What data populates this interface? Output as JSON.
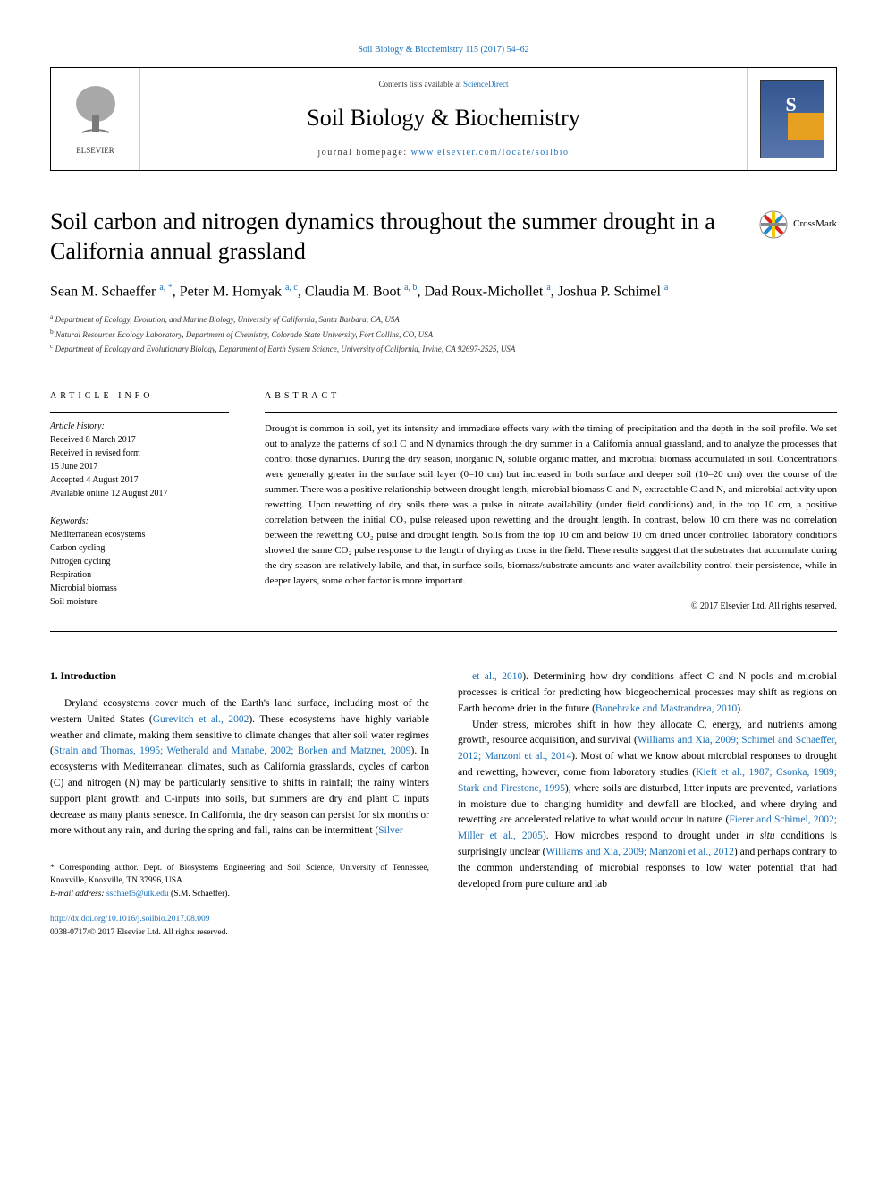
{
  "header": {
    "citation": "Soil Biology & Biochemistry 115 (2017) 54–62",
    "contents_prefix": "Contents lists available at ",
    "contents_link": "ScienceDirect",
    "journal_name": "Soil Biology & Biochemistry",
    "homepage_prefix": "journal homepage: ",
    "homepage_url": "www.elsevier.com/locate/soilbio",
    "publisher": "ELSEVIER"
  },
  "crossmark": {
    "label": "CrossMark"
  },
  "article": {
    "title": "Soil carbon and nitrogen dynamics throughout the summer drought in a California annual grassland",
    "authors_html": "Sean M. Schaeffer <sup>a, *</sup>, Peter M. Homyak <sup>a, c</sup>, Claudia M. Boot <sup>a, b</sup>, Dad Roux-Michollet <sup>a</sup>, Joshua P. Schimel <sup>a</sup>",
    "affiliations": [
      "a Department of Ecology, Evolution, and Marine Biology, University of California, Santa Barbara, CA, USA",
      "b Natural Resources Ecology Laboratory, Department of Chemistry, Colorado State University, Fort Collins, CO, USA",
      "c Department of Ecology and Evolutionary Biology, Department of Earth System Science, University of California, Irvine, CA 92697-2525, USA"
    ]
  },
  "meta": {
    "info_heading": "ARTICLE INFO",
    "history_title": "Article history:",
    "history": [
      "Received 8 March 2017",
      "Received in revised form",
      "15 June 2017",
      "Accepted 4 August 2017",
      "Available online 12 August 2017"
    ],
    "keywords_title": "Keywords:",
    "keywords": [
      "Mediterranean ecosystems",
      "Carbon cycling",
      "Nitrogen cycling",
      "Respiration",
      "Microbial biomass",
      "Soil moisture"
    ]
  },
  "abstract": {
    "heading": "ABSTRACT",
    "text": "Drought is common in soil, yet its intensity and immediate effects vary with the timing of precipitation and the depth in the soil profile. We set out to analyze the patterns of soil C and N dynamics through the dry summer in a California annual grassland, and to analyze the processes that control those dynamics. During the dry season, inorganic N, soluble organic matter, and microbial biomass accumulated in soil. Concentrations were generally greater in the surface soil layer (0–10 cm) but increased in both surface and deeper soil (10–20 cm) over the course of the summer. There was a positive relationship between drought length, microbial biomass C and N, extractable C and N, and microbial activity upon rewetting. Upon rewetting of dry soils there was a pulse in nitrate availability (under field conditions) and, in the top 10 cm, a positive correlation between the initial CO₂ pulse released upon rewetting and the drought length. In contrast, below 10 cm there was no correlation between the rewetting CO₂ pulse and drought length. Soils from the top 10 cm and below 10 cm dried under controlled laboratory conditions showed the same CO₂ pulse response to the length of drying as those in the field. These results suggest that the substrates that accumulate during the dry season are relatively labile, and that, in surface soils, biomass/substrate amounts and water availability control their persistence, while in deeper layers, some other factor is more important.",
    "copyright": "© 2017 Elsevier Ltd. All rights reserved."
  },
  "body": {
    "section_heading": "1. Introduction",
    "col1_para1_pre": "Dryland ecosystems cover much of the Earth's land surface, including most of the western United States (",
    "col1_cite1": "Gurevitch et al., 2002",
    "col1_para1_mid1": "). These ecosystems have highly variable weather and climate, making them sensitive to climate changes that alter soil water regimes (",
    "col1_cite2": "Strain and Thomas, 1995; Wetherald and Manabe, 2002; Borken and Matzner, 2009",
    "col1_para1_mid2": "). In ecosystems with Mediterranean climates, such as California grasslands, cycles of carbon (C) and nitrogen (N) may be particularly sensitive to shifts in rainfall; the rainy winters support plant growth and C-inputs into soils, but summers are dry and plant C inputs decrease as many plants senesce. In California, the dry season can persist for six months or more without any rain, and during the spring and fall, rains can be intermittent (",
    "col1_cite3": "Silver",
    "col2_cite1": "et al., 2010",
    "col2_para1_mid1": "). Determining how dry conditions affect C and N pools and microbial processes is critical for predicting how biogeochemical processes may shift as regions on Earth become drier in the future (",
    "col2_cite2": "Bonebrake and Mastrandrea, 2010",
    "col2_para1_end": ").",
    "col2_para2_pre": "Under stress, microbes shift in how they allocate C, energy, and nutrients among growth, resource acquisition, and survival (",
    "col2_cite3": "Williams and Xia, 2009; Schimel and Schaeffer, 2012; Manzoni et al., 2014",
    "col2_para2_mid1": "). Most of what we know about microbial responses to drought and rewetting, however, come from laboratory studies (",
    "col2_cite4": "Kieft et al., 1987; Csonka, 1989; Stark and Firestone, 1995",
    "col2_para2_mid2": "), where soils are disturbed, litter inputs are prevented, variations in moisture due to changing humidity and dewfall are blocked, and where drying and rewetting are accelerated relative to what would occur in nature (",
    "col2_cite5": "Fierer and Schimel, 2002; Miller et al., 2005",
    "col2_para2_mid3": "). How microbes respond to drought under ",
    "col2_insitu": "in situ",
    "col2_para2_mid4": " conditions is surprisingly unclear (",
    "col2_cite6": "Williams and Xia, 2009; Manzoni et al., 2012",
    "col2_para2_end": ") and perhaps contrary to the common understanding of microbial responses to low water potential that had developed from pure culture and lab"
  },
  "footnote": {
    "corr": "* Corresponding author. Dept. of Biosystems Engineering and Soil Science, University of Tennessee, Knoxville, Knoxville, TN 37996, USA.",
    "email_label": "E-mail address: ",
    "email": "sschaef5@utk.edu",
    "email_suffix": " (S.M. Schaeffer)."
  },
  "doi": {
    "url": "http://dx.doi.org/10.1016/j.soilbio.2017.08.009",
    "issn_line": "0038-0717/© 2017 Elsevier Ltd. All rights reserved."
  },
  "colors": {
    "link": "#1a6fb8",
    "text": "#000000",
    "affil": "#333333",
    "cover_top": "#335590",
    "cover_bottom": "#5876ac",
    "cover_accent": "#e8a020"
  }
}
